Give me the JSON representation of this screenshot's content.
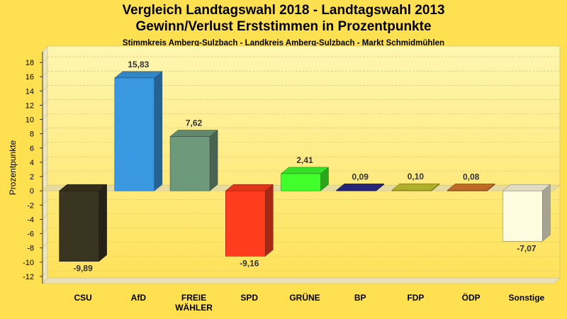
{
  "header": {
    "title": "Vergleich Landtagswahl 2018 - Landtagswahl 2013",
    "subtitle": "Gewinn/Verlust Erststimmen in Prozentpunkte",
    "caption": "Stimmkreis Amberg-Sulzbach - Landkreis Amberg-Sulzbach - Markt Schmidmühlen"
  },
  "chart_data": {
    "type": "bar",
    "title": "Vergleich Landtagswahl 2018 - Landtagswahl 2013",
    "subtitle": "Gewinn/Verlust Erststimmen in Prozentpunkte",
    "xlabel": "",
    "ylabel": "Prozentpunkte",
    "ylim": [
      -13,
      19.5
    ],
    "yticks": [
      -12,
      -10,
      -8,
      -6,
      -4,
      -2,
      0,
      2,
      4,
      6,
      8,
      10,
      12,
      14,
      16,
      18
    ],
    "grid": true,
    "categories": [
      "CSU",
      "AfD",
      "FREIE WÄHLER",
      "SPD",
      "GRÜNE",
      "BP",
      "FDP",
      "ÖDP",
      "Sonstige"
    ],
    "category_lines": [
      [
        "CSU"
      ],
      [
        "AfD"
      ],
      [
        "FREIE",
        "WÄHLER"
      ],
      [
        "SPD"
      ],
      [
        "GRÜNE"
      ],
      [
        "BP"
      ],
      [
        "FDP"
      ],
      [
        "ÖDP"
      ],
      [
        "Sonstige"
      ]
    ],
    "values": [
      -9.89,
      15.83,
      7.62,
      -9.16,
      2.41,
      0.09,
      0.1,
      0.08,
      -7.07
    ],
    "value_labels": [
      "-9,89",
      "15,83",
      "7,62",
      "-9,16",
      "2,41",
      "0,09",
      "0,10",
      "0,08",
      "-7,07"
    ],
    "colors": [
      "#3a3520",
      "#3a98e0",
      "#6e9a7c",
      "#ff3c1e",
      "#40ff2a",
      "#2a2a8a",
      "#c8c832",
      "#d87a30",
      "#fffbe0"
    ]
  }
}
